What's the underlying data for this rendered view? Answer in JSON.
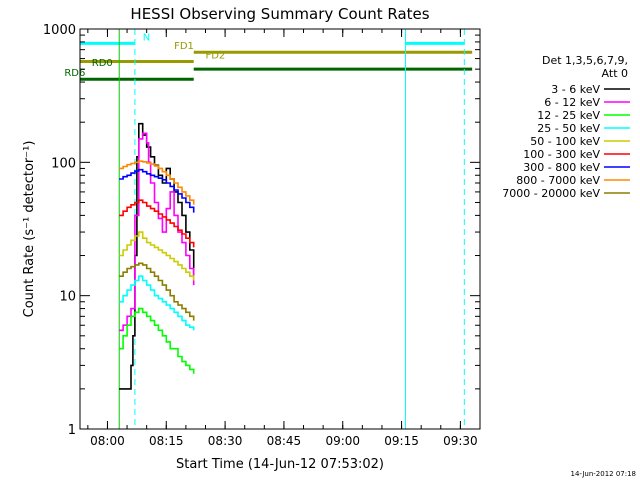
{
  "chart_data": {
    "type": "line",
    "title": "HESSI Observing Summary Count Rates",
    "xlabel": "Start Time (14-Jun-12 07:53:02)",
    "ylabel": "Count Rate (s⁻¹ detector⁻¹)",
    "x_unit": "minutes after 07:53:02",
    "xlim": [
      0,
      102
    ],
    "ylim": [
      1,
      1000
    ],
    "y_scale": "log",
    "x_ticks": [
      {
        "x": 7,
        "label": "08:00"
      },
      {
        "x": 22,
        "label": "08:15"
      },
      {
        "x": 37,
        "label": "08:30"
      },
      {
        "x": 52,
        "label": "08:45"
      },
      {
        "x": 67,
        "label": "09:00"
      },
      {
        "x": 82,
        "label": "09:15"
      },
      {
        "x": 97,
        "label": "09:30"
      }
    ],
    "y_ticks": [
      {
        "y": 1,
        "label": "1"
      },
      {
        "y": 10,
        "label": "10"
      },
      {
        "y": 100,
        "label": "100"
      },
      {
        "y": 1000,
        "label": "1000"
      }
    ],
    "legend": {
      "header": [
        "Det 1,3,5,6,7,9,",
        "Att 0"
      ],
      "placement": "right"
    },
    "footer_date": "14-Jun-2012 07:18",
    "series": [
      {
        "name": "3 - 6 keV",
        "color": "#000000",
        "x": [
          10.0,
          11.0,
          12.0,
          13.0,
          13.5,
          14.0,
          14.5,
          15.0,
          16.0,
          17.0,
          18.0,
          19.0,
          20.0,
          21.0,
          22.0,
          23.0,
          24.0,
          25.0,
          26.0,
          27.0,
          28.0,
          29.0
        ],
        "y": [
          2.0,
          2.0,
          2.0,
          3.0,
          5.0,
          20.0,
          110.0,
          195.0,
          160.0,
          130.0,
          110.0,
          95.0,
          80.0,
          70.0,
          90.0,
          75.0,
          60.0,
          50.0,
          40.0,
          30.0,
          22.0,
          14.0
        ]
      },
      {
        "name": "6 - 12 keV",
        "color": "#ff00ff",
        "x": [
          10.0,
          11.0,
          12.0,
          13.0,
          14.0,
          15.0,
          16.0,
          17.0,
          17.5,
          18.0,
          19.0,
          20.0,
          21.0,
          22.0,
          23.0,
          24.0,
          25.0,
          26.0,
          27.0,
          28.0,
          29.0
        ],
        "y": [
          5.5,
          6.0,
          7.0,
          8.0,
          40.0,
          150.0,
          165.0,
          140.0,
          100.0,
          70.0,
          50.0,
          38.0,
          30.0,
          45.0,
          60.0,
          40.0,
          30.0,
          25.0,
          20.0,
          16.0,
          12.0
        ]
      },
      {
        "name": "12 - 25 keV",
        "color": "#00ff00",
        "x": [
          10.0,
          11.0,
          12.0,
          13.0,
          14.0,
          15.0,
          16.0,
          17.0,
          18.0,
          19.0,
          20.0,
          21.0,
          22.0,
          23.0,
          24.0,
          25.0,
          26.0,
          27.0,
          28.0,
          29.0
        ],
        "y": [
          4.0,
          5.0,
          6.0,
          7.0,
          7.5,
          8.0,
          7.5,
          7.0,
          6.5,
          6.0,
          5.5,
          5.0,
          4.5,
          4.0,
          4.0,
          3.5,
          3.2,
          3.0,
          2.8,
          2.6
        ]
      },
      {
        "name": "25 - 50 keV",
        "color": "#00ffff",
        "x": [
          10.0,
          11.0,
          12.0,
          13.0,
          14.0,
          15.0,
          16.0,
          17.0,
          18.0,
          19.0,
          20.0,
          21.0,
          22.0,
          23.0,
          24.0,
          25.0,
          26.0,
          27.0,
          28.0,
          29.0
        ],
        "y": [
          9.0,
          10.0,
          11.0,
          12.0,
          13.0,
          14.0,
          13.0,
          12.0,
          11.0,
          10.0,
          9.5,
          9.0,
          8.5,
          8.0,
          7.5,
          7.0,
          6.5,
          6.0,
          5.8,
          5.5
        ]
      },
      {
        "name": "50 - 100 keV",
        "color": "#cccc00",
        "x": [
          10.0,
          11.0,
          12.0,
          13.0,
          14.0,
          15.0,
          16.0,
          17.0,
          18.0,
          19.0,
          20.0,
          21.0,
          22.0,
          23.0,
          24.0,
          25.0,
          26.0,
          27.0,
          28.0,
          29.0
        ],
        "y": [
          20.0,
          22.0,
          24.0,
          26.0,
          28.0,
          30.0,
          27.0,
          25.0,
          24.0,
          23.0,
          22.0,
          21.0,
          20.0,
          19.0,
          18.0,
          17.0,
          16.0,
          15.0,
          14.0,
          13.0
        ]
      },
      {
        "name": "100 - 300 keV",
        "color": "#ff0000",
        "x": [
          10.0,
          11.0,
          12.0,
          13.0,
          14.0,
          15.0,
          16.0,
          17.0,
          18.0,
          19.0,
          20.0,
          21.0,
          22.0,
          23.0,
          24.0,
          25.0,
          26.0,
          27.0,
          28.0,
          29.0
        ],
        "y": [
          40.0,
          43.0,
          46.0,
          48.0,
          50.0,
          52.0,
          50.0,
          47.0,
          45.0,
          43.0,
          41.0,
          39.0,
          37.0,
          35.0,
          33.0,
          31.0,
          29.0,
          27.0,
          25.0,
          23.0
        ]
      },
      {
        "name": "300 - 800 keV",
        "color": "#0000ff",
        "x": [
          10.0,
          11.0,
          12.0,
          13.0,
          14.0,
          15.0,
          16.0,
          17.0,
          18.0,
          19.0,
          20.0,
          21.0,
          22.0,
          23.0,
          24.0,
          25.0,
          26.0,
          27.0,
          28.0,
          29.0
        ],
        "y": [
          75.0,
          78.0,
          80.0,
          83.0,
          86.0,
          88.0,
          85.0,
          82.0,
          80.0,
          78.0,
          76.0,
          74.0,
          70.0,
          66.0,
          62.0,
          58.0,
          54.0,
          50.0,
          46.0,
          42.0
        ]
      },
      {
        "name": "800 - 7000 keV",
        "color": "#ff8800",
        "x": [
          10.0,
          11.0,
          12.0,
          13.0,
          14.0,
          15.0,
          16.0,
          17.0,
          18.0,
          19.0,
          20.0,
          21.0,
          22.0,
          23.0,
          24.0,
          25.0,
          26.0,
          27.0,
          28.0,
          29.0
        ],
        "y": [
          90.0,
          93.0,
          96.0,
          98.0,
          100.0,
          102.0,
          101.0,
          99.0,
          97.0,
          94.0,
          90.0,
          85.0,
          80.0,
          75.0,
          70.0,
          65.0,
          60.0,
          56.0,
          52.0,
          48.0
        ]
      },
      {
        "name": "7000 - 20000 keV",
        "color": "#8b7d00",
        "x": [
          10.0,
          11.0,
          12.0,
          13.0,
          14.0,
          15.0,
          16.0,
          17.0,
          18.0,
          19.0,
          20.0,
          21.0,
          22.0,
          23.0,
          24.0,
          25.0,
          26.0,
          27.0,
          28.0,
          29.0
        ],
        "y": [
          14.0,
          15.0,
          16.0,
          16.5,
          17.0,
          17.5,
          17.0,
          16.0,
          15.0,
          14.0,
          13.0,
          12.0,
          11.0,
          10.0,
          9.0,
          8.5,
          8.0,
          7.5,
          7.0,
          6.5
        ]
      }
    ],
    "flags": [
      {
        "label": "N",
        "color": "#00ffff",
        "label_color": "#00ffff",
        "y": 780,
        "segments": [
          [
            0,
            14
          ],
          [
            83,
            98
          ]
        ],
        "label_x": 16
      },
      {
        "label": "FD1",
        "color": "#999900",
        "label_color": "#999900",
        "y": 670,
        "segments": [
          [
            29,
            100
          ]
        ],
        "label_x": 24
      },
      {
        "label": "FD2",
        "color": "#999900",
        "label_color": "#999900",
        "y": 570,
        "segments": [
          [
            0,
            29
          ]
        ],
        "label_x": 32
      },
      {
        "label": "RD0",
        "color": "#006600",
        "label_color": "#006600",
        "y": 500,
        "segments": [
          [
            29,
            100
          ]
        ],
        "label_x": 3
      },
      {
        "label": "RD6",
        "color": "#006600",
        "label_color": "#006600",
        "y": 420,
        "segments": [
          [
            0,
            29
          ]
        ],
        "label_x": -4
      }
    ],
    "vertical_lines": [
      {
        "x": 0,
        "color": "#00ffff",
        "style": "solid"
      },
      {
        "x": 14,
        "color": "#00ffff",
        "style": "dashed"
      },
      {
        "x": 83,
        "color": "#00ffff",
        "style": "solid"
      },
      {
        "x": 98,
        "color": "#00ffff",
        "style": "dashed"
      },
      {
        "x": 10,
        "color": "#00cc00",
        "style": "solid"
      }
    ]
  }
}
